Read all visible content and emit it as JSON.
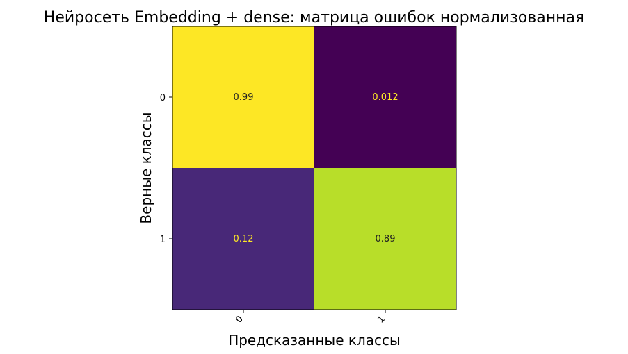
{
  "chart_data": {
    "type": "heatmap",
    "title": "Нейросеть Embedding + dense: матрица ошибок нормализованная",
    "xlabel": "Предсказанные классы",
    "ylabel": "Верные классы",
    "x_categories": [
      "0",
      "1"
    ],
    "y_categories": [
      "0",
      "1"
    ],
    "values": [
      [
        0.99,
        0.012
      ],
      [
        0.12,
        0.89
      ]
    ],
    "value_labels": [
      [
        "0.99",
        "0.012"
      ],
      [
        "0.12",
        "0.89"
      ]
    ],
    "colorscale": "viridis",
    "color_range": [
      0,
      1
    ],
    "cell_colors": [
      [
        "#fde725",
        "#440154"
      ],
      [
        "#482878",
        "#b8de29"
      ]
    ],
    "text_colors": [
      [
        "#222222",
        "#fde725"
      ],
      [
        "#fde725",
        "#222222"
      ]
    ],
    "grid": false,
    "colorbar": false
  }
}
